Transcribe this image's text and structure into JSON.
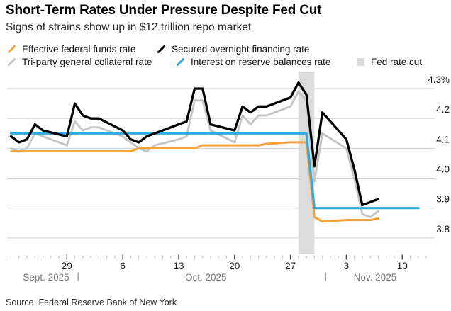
{
  "header": {
    "title": "Short-Term Rates Under Pressure Despite Fed Cut",
    "subtitle": "Signs of strains show up in $12 trillion repo market"
  },
  "source": "Source: Federal Reserve Bank of New York",
  "chart_data": {
    "type": "line",
    "title": "Short-Term Rates Under Pressure Despite Fed Cut",
    "ylabel": "",
    "xlabel": "",
    "ylim": [
      3.8,
      4.3
    ],
    "grid": "horizontal",
    "legend_position": "top",
    "y_ticks": [
      {
        "value": 4.3,
        "label": "4.3%"
      },
      {
        "value": 4.2,
        "label": "4.2"
      },
      {
        "value": 4.1,
        "label": "4.1"
      },
      {
        "value": 4.0,
        "label": "4.0"
      },
      {
        "value": 3.9,
        "label": "3.9"
      },
      {
        "value": 3.8,
        "label": "3.8"
      }
    ],
    "x_axis": {
      "dates": [
        "Sep 22",
        "Sep 23",
        "Sep 24",
        "Sep 25",
        "Sep 26",
        "Sep 29",
        "Sep 30",
        "Oct 1",
        "Oct 2",
        "Oct 3",
        "Oct 6",
        "Oct 7",
        "Oct 8",
        "Oct 9",
        "Oct 10",
        "Oct 13",
        "Oct 14",
        "Oct 15",
        "Oct 16",
        "Oct 17",
        "Oct 20",
        "Oct 21",
        "Oct 22",
        "Oct 23",
        "Oct 24",
        "Oct 27",
        "Oct 28",
        "Oct 29",
        "Oct 30",
        "Oct 31",
        "Nov 3",
        "Nov 4",
        "Nov 5",
        "Nov 6",
        "Nov 7"
      ],
      "days": [
        0,
        1,
        2,
        3,
        4,
        7,
        8,
        9,
        10,
        11,
        14,
        15,
        16,
        17,
        18,
        21,
        22,
        23,
        24,
        25,
        28,
        29,
        30,
        31,
        32,
        35,
        36,
        37,
        38,
        39,
        42,
        43,
        44,
        45,
        46
      ],
      "minor_tick_day_range": [
        0,
        52
      ],
      "major_ticks": [
        {
          "day": 7,
          "label": "29"
        },
        {
          "day": 14,
          "label": "6"
        },
        {
          "day": 21,
          "label": "13"
        },
        {
          "day": 28,
          "label": "20"
        },
        {
          "day": 35,
          "label": "27"
        },
        {
          "day": 42,
          "label": "3"
        },
        {
          "day": 49,
          "label": "10"
        }
      ],
      "month_labels": [
        {
          "day": 4.4,
          "label": "Sept. 2025"
        },
        {
          "day": 24.4,
          "label": "Oct. 2025"
        },
        {
          "day": 45.6,
          "label": "Nov. 2025"
        }
      ],
      "month_separators": [
        {
          "day": 8.4,
          "glyph": "|"
        },
        {
          "day": 39.4,
          "glyph": "|"
        }
      ]
    },
    "series": [
      {
        "key": "effr",
        "name": "Effective federal funds rate",
        "color": "#f7a139",
        "z": 2,
        "width": 3,
        "values": [
          4.09,
          4.09,
          4.09,
          4.09,
          4.09,
          4.09,
          4.09,
          4.09,
          4.09,
          4.09,
          4.09,
          4.09,
          4.1,
          4.1,
          4.1,
          4.1,
          4.1,
          4.1,
          4.11,
          4.11,
          4.11,
          4.11,
          4.11,
          4.11,
          4.115,
          4.12,
          4.12,
          4.12,
          3.87,
          3.855,
          3.86,
          3.86,
          3.86,
          3.86,
          3.865
        ]
      },
      {
        "key": "sofr",
        "name": "Secured overnight financing rate",
        "color": "#000000",
        "z": 4,
        "width": 3.3,
        "values": [
          4.14,
          4.12,
          4.13,
          4.18,
          4.16,
          4.14,
          4.25,
          4.21,
          4.2,
          4.2,
          4.16,
          4.13,
          4.12,
          4.14,
          4.15,
          4.18,
          4.19,
          4.3,
          4.3,
          4.18,
          4.16,
          4.24,
          4.22,
          4.24,
          4.24,
          4.27,
          4.32,
          4.28,
          4.04,
          4.22,
          4.13,
          4.03,
          3.91,
          3.92,
          3.93
        ]
      },
      {
        "key": "triparty",
        "name": "Tri-party general collateral rate",
        "color": "#c6c6c6",
        "z": 1,
        "width": 3,
        "values": [
          4.1,
          4.09,
          4.1,
          4.15,
          4.14,
          4.11,
          4.19,
          4.16,
          4.17,
          4.17,
          4.14,
          4.12,
          4.1,
          4.09,
          4.11,
          4.13,
          4.14,
          4.26,
          4.26,
          4.16,
          4.12,
          4.21,
          4.18,
          4.21,
          4.21,
          4.24,
          4.29,
          4.26,
          3.99,
          4.15,
          4.1,
          4.0,
          3.88,
          3.87,
          3.89
        ]
      },
      {
        "key": "iorb",
        "name": "Interest on reserve balances rate",
        "color": "#35a7e0",
        "z": 3,
        "width": 3.2,
        "extend_to_day": 51,
        "values": [
          4.15,
          4.15,
          4.15,
          4.15,
          4.15,
          4.15,
          4.15,
          4.15,
          4.15,
          4.15,
          4.15,
          4.15,
          4.15,
          4.15,
          4.15,
          4.15,
          4.15,
          4.15,
          4.15,
          4.15,
          4.15,
          4.15,
          4.15,
          4.15,
          4.15,
          4.15,
          4.15,
          4.15,
          3.9,
          3.9,
          3.9,
          3.9,
          3.9,
          3.9,
          3.9
        ]
      }
    ],
    "band": {
      "label": "Fed rate cut",
      "color": "#dcdcdc",
      "start_day": 36,
      "end_day": 38,
      "start_date": "Oct 28",
      "end_date": "Oct 30"
    },
    "colors": {
      "gridline": "#cfcfcf",
      "minor_tick": "#bdbdbd",
      "major_tick": "#444444",
      "tick_label": "#1a1a1a",
      "month_label": "#7a7a7a",
      "y_label": "#111111"
    }
  }
}
